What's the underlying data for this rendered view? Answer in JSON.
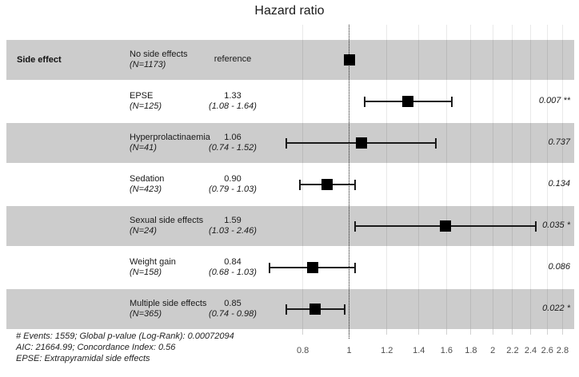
{
  "title": "Hazard ratio",
  "column_header": "Side effect",
  "colors": {
    "stripe": "#cccccc",
    "gridline": "#dedede",
    "marker": "#000000",
    "reference_line": "#2b2b2b",
    "text": "#1a1a1a",
    "tick_text": "#4d4d4d"
  },
  "chart_data": {
    "type": "scatter",
    "subtype": "forest-plot",
    "title": "Hazard ratio",
    "x_scale": "log",
    "grid": true,
    "legend": "none",
    "xlim": [
      0.72,
      2.9
    ],
    "reference_value": 1,
    "x_ticks": [
      "0.8",
      "1",
      "1.2",
      "1.4",
      "1.6",
      "1.8",
      "2",
      "2.2",
      "2.4",
      "2.6",
      "2.8"
    ],
    "x_tick_values": [
      0.8,
      1,
      1.2,
      1.4,
      1.6,
      1.8,
      2,
      2.2,
      2.4,
      2.6,
      2.8
    ],
    "rows": [
      {
        "label": "No side effects",
        "n_label": "(N=1173)",
        "estimate_label": "reference",
        "ci_label": "",
        "hr": 1.0,
        "ci_low": null,
        "ci_high": null,
        "pvalue": "",
        "shaded": true
      },
      {
        "label": "EPSE",
        "n_label": "(N=125)",
        "estimate_label": "1.33",
        "ci_label": "(1.08 - 1.64)",
        "hr": 1.33,
        "ci_low": 1.08,
        "ci_high": 1.64,
        "pvalue": "0.007 **",
        "shaded": false
      },
      {
        "label": "Hyperprolactinaemia",
        "n_label": "(N=41)",
        "estimate_label": "1.06",
        "ci_label": "(0.74 - 1.52)",
        "hr": 1.06,
        "ci_low": 0.74,
        "ci_high": 1.52,
        "pvalue": "0.737",
        "shaded": true
      },
      {
        "label": "Sedation",
        "n_label": "(N=423)",
        "estimate_label": "0.90",
        "ci_label": "(0.79 - 1.03)",
        "hr": 0.9,
        "ci_low": 0.79,
        "ci_high": 1.03,
        "pvalue": "0.134",
        "shaded": false
      },
      {
        "label": "Sexual side effects",
        "n_label": "(N=24)",
        "estimate_label": "1.59",
        "ci_label": "(1.03 - 2.46)",
        "hr": 1.59,
        "ci_low": 1.03,
        "ci_high": 2.46,
        "pvalue": "0.035 *",
        "shaded": true
      },
      {
        "label": "Weight gain",
        "n_label": "(N=158)",
        "estimate_label": "0.84",
        "ci_label": "(0.68 - 1.03)",
        "hr": 0.84,
        "ci_low": 0.68,
        "ci_high": 1.03,
        "pvalue": "0.086",
        "shaded": false
      },
      {
        "label": "Multiple side effects",
        "n_label": "(N=365)",
        "estimate_label": "0.85",
        "ci_label": "(0.74 - 0.98)",
        "hr": 0.85,
        "ci_low": 0.74,
        "ci_high": 0.98,
        "pvalue": "0.022 *",
        "shaded": true
      }
    ]
  },
  "footer": {
    "lines": [
      "# Events: 1559; Global p-value (Log-Rank): 0.00072094",
      "AIC: 21664.99; Concordance Index: 0.56",
      "EPSE: Extrapyramidal side effects"
    ]
  }
}
